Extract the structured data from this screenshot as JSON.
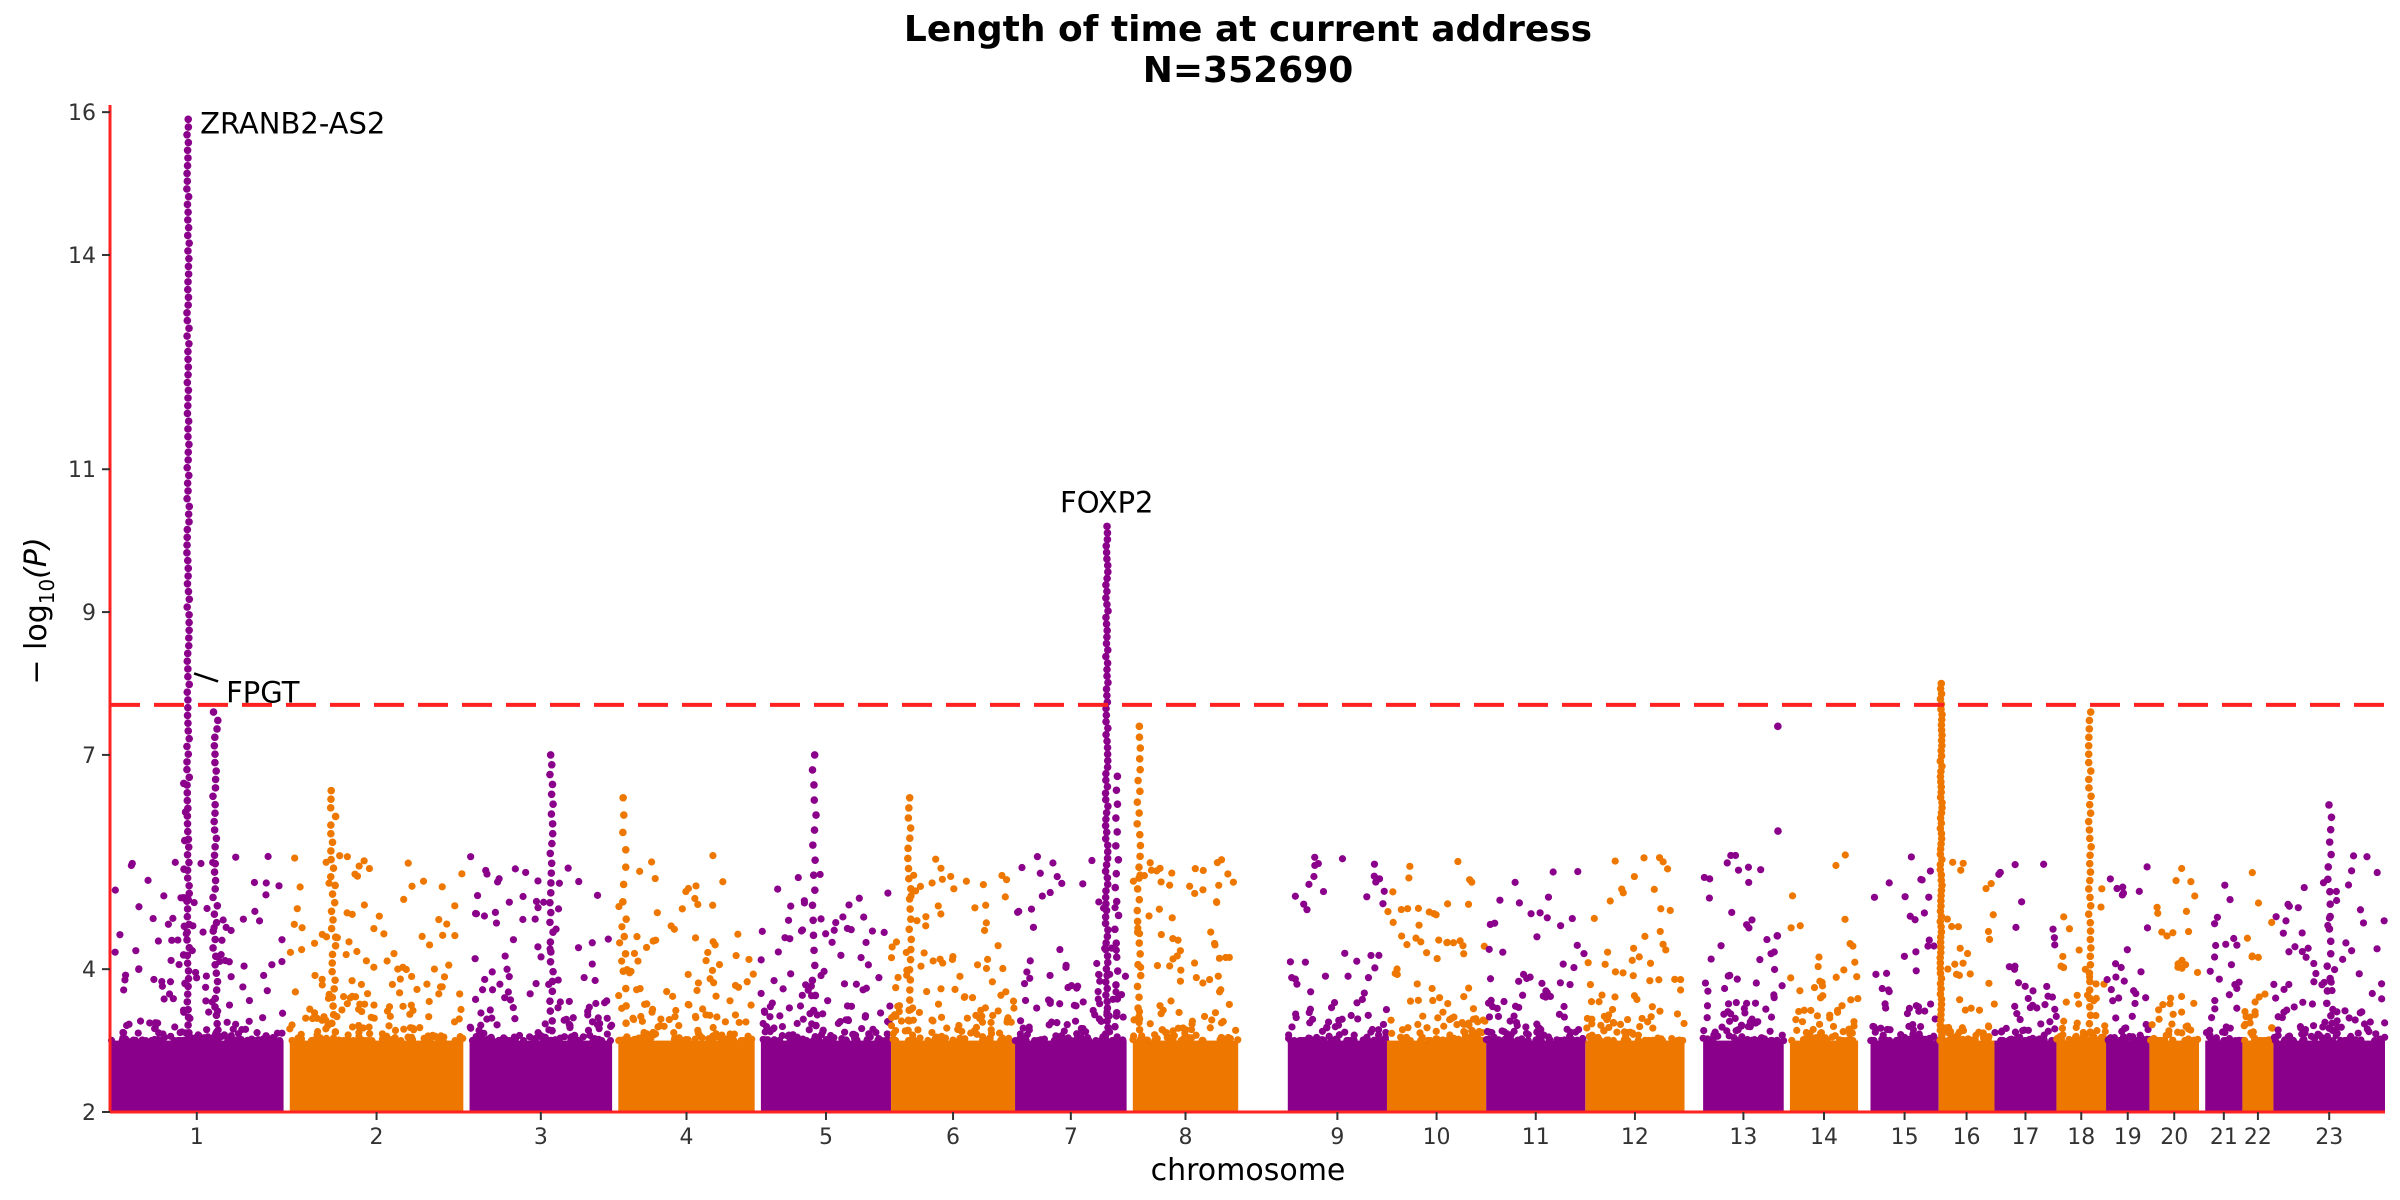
{
  "chart_data": {
    "type": "scatter",
    "subtype": "manhattan",
    "title": "Length of time at current address",
    "subtitle": "N=352690",
    "xlabel": "chromosome",
    "ylabel_prefix": "− log",
    "ylabel_sub": "10",
    "ylabel_suffix": "(P)",
    "ylim": [
      2,
      16.1
    ],
    "yticks": [
      2,
      4,
      7,
      9,
      11,
      14,
      16
    ],
    "significance_threshold": 7.7,
    "threshold_color": "#ff2222",
    "axis_color": "#ff2222",
    "grid": false,
    "point_colors": [
      "#8b008b",
      "#ee7700"
    ],
    "chromosomes": [
      {
        "label": "1",
        "start": 0.0,
        "end": 1.4,
        "color": "#8b008b",
        "peaks": [
          {
            "x": 0.63,
            "maxY": 15.9,
            "width": 0.02,
            "count": 120
          },
          {
            "x": 0.85,
            "maxY": 7.6,
            "width": 0.04,
            "count": 40
          },
          {
            "x": 0.6,
            "maxY": 6.6,
            "width": 0.02,
            "count": 10
          }
        ]
      },
      {
        "label": "2",
        "start": 1.45,
        "end": 2.85,
        "color": "#ee7700",
        "peaks": [
          {
            "x": 1.8,
            "maxY": 6.5,
            "width": 0.04,
            "count": 30
          }
        ]
      },
      {
        "label": "3",
        "start": 2.9,
        "end": 4.05,
        "color": "#8b008b",
        "peaks": [
          {
            "x": 3.56,
            "maxY": 7.0,
            "width": 0.03,
            "count": 30
          }
        ]
      },
      {
        "label": "4",
        "start": 4.1,
        "end": 5.2,
        "color": "#ee7700",
        "peaks": [
          {
            "x": 4.15,
            "maxY": 6.4,
            "width": 0.03,
            "count": 15
          }
        ]
      },
      {
        "label": "5",
        "start": 5.25,
        "end": 6.3,
        "color": "#8b008b",
        "peaks": [
          {
            "x": 5.68,
            "maxY": 7.0,
            "width": 0.03,
            "count": 20
          }
        ]
      },
      {
        "label": "6",
        "start": 6.3,
        "end": 7.3,
        "color": "#ee7700",
        "peaks": [
          {
            "x": 6.45,
            "maxY": 6.4,
            "width": 0.03,
            "count": 25
          }
        ]
      },
      {
        "label": "7",
        "start": 7.3,
        "end": 8.2,
        "color": "#8b008b",
        "peaks": [
          {
            "x": 8.04,
            "maxY": 10.2,
            "width": 0.02,
            "count": 80
          },
          {
            "x": 8.12,
            "maxY": 6.7,
            "width": 0.03,
            "count": 20
          }
        ]
      },
      {
        "label": "8",
        "start": 8.25,
        "end": 9.1,
        "color": "#ee7700",
        "peaks": [
          {
            "x": 8.3,
            "maxY": 7.4,
            "width": 0.03,
            "count": 30
          }
        ]
      },
      {
        "label": "9",
        "start": 9.5,
        "end": 10.3,
        "color": "#8b008b",
        "peaks": []
      },
      {
        "label": "10",
        "start": 10.3,
        "end": 11.1,
        "color": "#ee7700",
        "peaks": []
      },
      {
        "label": "11",
        "start": 11.1,
        "end": 11.9,
        "color": "#8b008b",
        "peaks": []
      },
      {
        "label": "12",
        "start": 11.9,
        "end": 12.7,
        "color": "#ee7700",
        "peaks": []
      },
      {
        "label": "13",
        "start": 12.85,
        "end": 13.5,
        "color": "#8b008b",
        "peaks": [
          {
            "x": 13.45,
            "maxY": 7.4,
            "width": 0.01,
            "count": 4
          }
        ]
      },
      {
        "label": "14",
        "start": 13.55,
        "end": 14.1,
        "color": "#ee7700",
        "peaks": []
      },
      {
        "label": "15",
        "start": 14.2,
        "end": 14.75,
        "color": "#8b008b",
        "peaks": []
      },
      {
        "label": "16",
        "start": 14.75,
        "end": 15.2,
        "color": "#ee7700",
        "peaks": [
          {
            "x": 14.77,
            "maxY": 8.0,
            "width": 0.015,
            "count": 70
          }
        ]
      },
      {
        "label": "17",
        "start": 15.2,
        "end": 15.7,
        "color": "#8b008b",
        "peaks": []
      },
      {
        "label": "18",
        "start": 15.7,
        "end": 16.1,
        "color": "#ee7700",
        "peaks": [
          {
            "x": 15.97,
            "maxY": 7.6,
            "width": 0.02,
            "count": 40
          }
        ]
      },
      {
        "label": "19",
        "start": 16.1,
        "end": 16.45,
        "color": "#8b008b",
        "peaks": []
      },
      {
        "label": "20",
        "start": 16.45,
        "end": 16.85,
        "color": "#ee7700",
        "peaks": []
      },
      {
        "label": "21",
        "start": 16.9,
        "end": 17.2,
        "color": "#8b008b",
        "peaks": []
      },
      {
        "label": "22",
        "start": 17.2,
        "end": 17.45,
        "color": "#ee7700",
        "peaks": []
      },
      {
        "label": "23",
        "start": 17.45,
        "end": 18.35,
        "color": "#8b008b",
        "peaks": [
          {
            "x": 17.9,
            "maxY": 6.3,
            "width": 0.04,
            "count": 20
          }
        ]
      }
    ],
    "annotations": [
      {
        "label": "ZRANB2-AS2",
        "x": 0.63,
        "y": 15.9
      },
      {
        "label": "FPGT",
        "x": 0.63,
        "y": 8.0,
        "leader": true
      },
      {
        "label": "FOXP2",
        "x": 8.04,
        "y": 10.2
      }
    ]
  }
}
